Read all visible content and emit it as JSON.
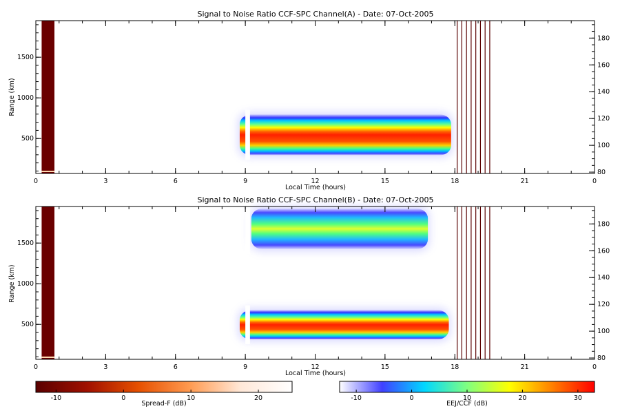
{
  "chart_data": [
    {
      "type": "heatmap",
      "title": "Signal to Noise Ratio CCF-SPC Channel(A) - Date: 07-Oct-2005",
      "xlabel": "Local Time (hours)",
      "ylabel": "Range (km)",
      "xlim": [
        0,
        24
      ],
      "ylim": [
        70,
        1950
      ],
      "xticks": [
        "0",
        "3",
        "6",
        "9",
        "12",
        "15",
        "18",
        "21",
        "0"
      ],
      "yticks": [
        500,
        1000,
        1500
      ],
      "y2ticks": [
        80,
        100,
        120,
        140,
        160,
        180
      ],
      "y2lim": [
        79,
        193
      ],
      "grid": false,
      "spread_f_blocks": [
        {
          "x": [
            0.25,
            0.8
          ],
          "y": [
            70,
            1950
          ]
        }
      ],
      "eej_ccf_regions": [
        {
          "x": [
            8.7,
            17.9
          ],
          "y": [
            270,
            820
          ],
          "peak_dB": 25,
          "description": "single layer"
        }
      ],
      "marker_lines_x": [
        18.1,
        18.3,
        18.5,
        18.7,
        18.9,
        19.1,
        19.3,
        19.5
      ]
    },
    {
      "type": "heatmap",
      "title": "Signal to Noise Ratio CCF-SPC Channel(B) - Date: 07-Oct-2005",
      "xlabel": "Local Time (hours)",
      "ylabel": "Range (km)",
      "xlim": [
        0,
        24
      ],
      "ylim": [
        70,
        1950
      ],
      "xticks": [
        "0",
        "3",
        "6",
        "9",
        "12",
        "15",
        "18",
        "21",
        "0"
      ],
      "yticks": [
        500,
        1000,
        1500
      ],
      "y2ticks": [
        80,
        100,
        120,
        140,
        160,
        180
      ],
      "y2lim": [
        79,
        193
      ],
      "grid": false,
      "spread_f_blocks": [
        {
          "x": [
            0.25,
            0.8
          ],
          "y": [
            70,
            1950
          ]
        }
      ],
      "eej_ccf_regions": [
        {
          "x": [
            8.7,
            17.8
          ],
          "y": [
            290,
            700
          ],
          "peak_dB": 20,
          "description": "lower layer"
        },
        {
          "x": [
            9.2,
            16.9
          ],
          "y": [
            1400,
            1950
          ],
          "peak_dB": 10,
          "description": "upper layer"
        }
      ],
      "marker_lines_x": [
        18.1,
        18.3,
        18.5,
        18.7,
        18.9,
        19.1,
        19.3,
        19.5
      ]
    }
  ],
  "colorbars": [
    {
      "label": "Spread-F (dB)",
      "range": [
        -13,
        25
      ],
      "ticks": [
        "-10",
        "0",
        "10",
        "20"
      ],
      "colors": [
        "#5a0000",
        "#a01000",
        "#e65000",
        "#ff9a50",
        "#ffe8d8",
        "#ffffff"
      ]
    },
    {
      "label": "EEJ/CCF (dB)",
      "range": [
        -13,
        33
      ],
      "ticks": [
        "-10",
        "0",
        "10",
        "20",
        "30"
      ],
      "colors": [
        "#ffffff",
        "#4040ff",
        "#00d8ff",
        "#80ff80",
        "#ffff00",
        "#ff8000",
        "#ff0000"
      ]
    }
  ]
}
